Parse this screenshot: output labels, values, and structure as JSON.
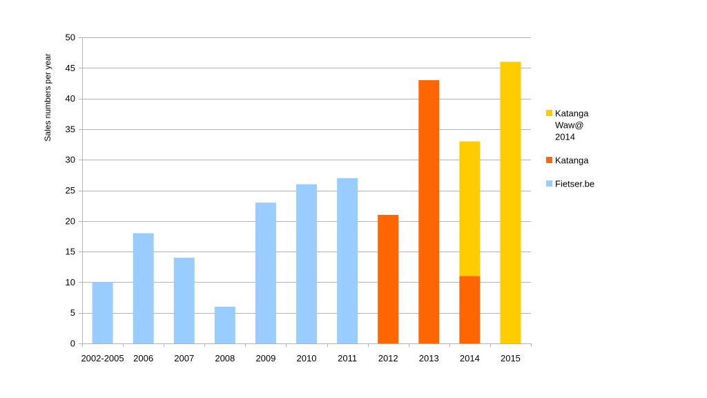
{
  "chart_data": {
    "type": "bar",
    "stacked": true,
    "categories": [
      "2002-2005",
      "2006",
      "2007",
      "2008",
      "2009",
      "2010",
      "2011",
      "2012",
      "2013",
      "2014",
      "2015"
    ],
    "series": [
      {
        "name": "Fietser.be",
        "color": "#99ccff",
        "values": [
          10,
          18,
          14,
          6,
          23,
          26,
          27,
          0,
          0,
          0,
          0
        ]
      },
      {
        "name": "Katanga",
        "color": "#ff6600",
        "values": [
          0,
          0,
          0,
          0,
          0,
          0,
          0,
          21,
          43,
          11,
          0
        ]
      },
      {
        "name": "Katanga Waw@ 2014",
        "legend_lines": [
          "Katanga",
          "Waw@",
          "2014"
        ],
        "color": "#ffcc00",
        "values": [
          0,
          0,
          0,
          0,
          0,
          0,
          0,
          0,
          0,
          22,
          46
        ]
      }
    ],
    "title": "",
    "xlabel": "",
    "ylabel": "Sales numbers per year",
    "ylim": [
      0,
      50
    ],
    "yticks": [
      0,
      5,
      10,
      15,
      20,
      25,
      30,
      35,
      40,
      45,
      50
    ],
    "grid": true,
    "legend_position": "right",
    "legend_order": [
      "Katanga Waw@ 2014",
      "Katanga",
      "Fietser.be"
    ]
  }
}
